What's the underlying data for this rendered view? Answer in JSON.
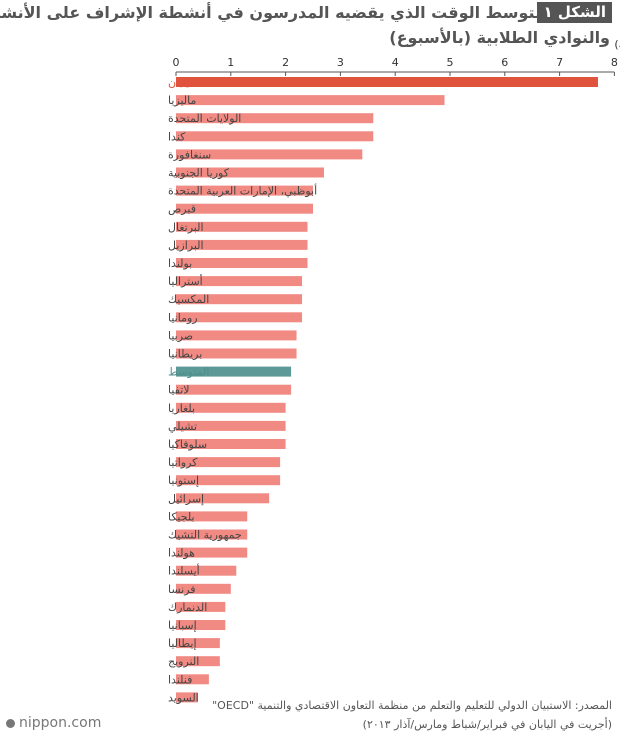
{
  "header": {
    "figure_label": "الشكل ١",
    "title_line1": "متوسط الوقت الذي يقضيه المدرسون في أنشطة الإشراف على الأنشطة",
    "title_line2": "والنوادي الطلابية (بالأسبوع)"
  },
  "footer": {
    "source_line1": "المصدر: الاستبيان الدولي للتعليم والتعلم من منظمة التعاون الاقتصادي والتنمية \"OECD\"",
    "source_line2": "(أجريت في اليابان في فبراير/شباط ومارس/آذار ٢٠١٣)",
    "brand": "nippon.com"
  },
  "chart_data": {
    "type": "bar",
    "orientation": "horizontal",
    "unit_label": "(ساعة)",
    "xlim": [
      0,
      8
    ],
    "xticks": [
      0,
      1,
      2,
      3,
      4,
      5,
      6,
      7,
      8
    ],
    "grid": false,
    "categories": [
      "اليابان",
      "ماليزيا",
      "الولايات المتحدة",
      "كندا",
      "سنغافورة",
      "كوريا الجنوبية",
      "أبوظبي، الإمارات العربية المتحدة",
      "قبرص",
      "البرتغال",
      "البرازيل",
      "بولندا",
      "أستراليا",
      "المكسيك",
      "رومانيا",
      "صربيا",
      "بريطانيا",
      "المتوسط",
      "لاتفيا",
      "بلغاريا",
      "تشيلي",
      "سلوفاكيا",
      "كرواتيا",
      "إستونيا",
      "إسرائيل",
      "بلجيكا",
      "جمهورية التشيك",
      "هولندا",
      "أيسلندا",
      "فرنسا",
      "الدنمارك",
      "إسبانيا",
      "إيطاليا",
      "النرويج",
      "فنلندا",
      "السويد"
    ],
    "values": [
      7.7,
      4.9,
      3.6,
      3.6,
      3.4,
      2.7,
      2.5,
      2.5,
      2.4,
      2.4,
      2.4,
      2.3,
      2.3,
      2.3,
      2.2,
      2.2,
      2.1,
      2.1,
      2.0,
      2.0,
      2.0,
      1.9,
      1.9,
      1.7,
      1.3,
      1.3,
      1.3,
      1.1,
      1.0,
      0.9,
      0.9,
      0.8,
      0.8,
      0.6,
      0.4
    ],
    "colors": {
      "default_bar": "#f08a83",
      "highlight_bar": "#e0533c",
      "average_bar": "#5c9997",
      "highlight_label": "#e0533c",
      "average_label": "#4e8d8c",
      "default_label": "#444444",
      "axis": "#555555"
    },
    "highlight_index": 0,
    "average_index": 16
  }
}
